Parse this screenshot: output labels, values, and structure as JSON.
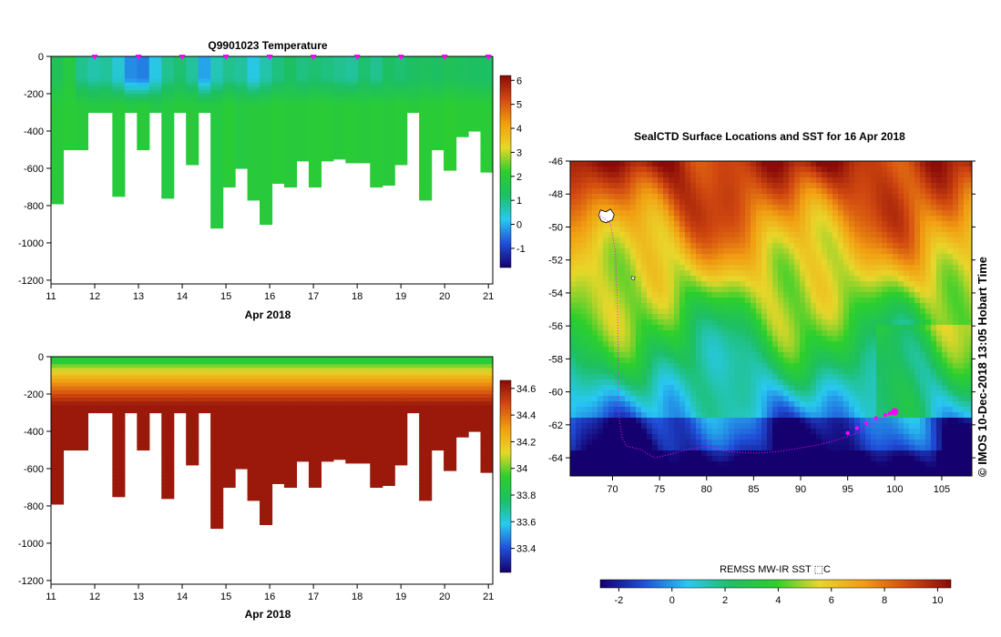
{
  "colors": {
    "ramp": [
      "#14006e",
      "#1f4fd8",
      "#29c8f2",
      "#1dbf63",
      "#2ccf2c",
      "#e9d62a",
      "#f29d12",
      "#d24a10",
      "#8a0b08"
    ]
  },
  "chart_data": [
    {
      "type": "heatmap",
      "title": "Q9901023  Temperature",
      "xlabel": "Apr 2018",
      "ylabel": "",
      "xlim": [
        11,
        21.1
      ],
      "ylim": [
        -1220,
        0
      ],
      "xticks": [
        11,
        12,
        13,
        14,
        15,
        16,
        17,
        18,
        19,
        20,
        21
      ],
      "yticks": [
        0,
        -200,
        -400,
        -600,
        -800,
        -1000,
        -1200
      ],
      "colorbar": {
        "min": -1.8,
        "max": 6.2,
        "ticks": [
          6,
          5,
          4,
          3,
          2,
          1,
          0,
          -1
        ]
      },
      "surface_markers_day": [
        12,
        13,
        14,
        15,
        16,
        17,
        18,
        19,
        20,
        21
      ],
      "profile_max_depths": [
        -790,
        -500,
        -500,
        -300,
        -300,
        -750,
        -300,
        -500,
        -300,
        -760,
        -300,
        -580,
        -300,
        -920,
        -700,
        -600,
        -770,
        -900,
        -680,
        -700,
        -560,
        -700,
        -560,
        -550,
        -570,
        -570,
        -700,
        -690,
        -580,
        -300,
        -770,
        -500,
        -610,
        -430,
        -400,
        -620
      ],
      "profile_surface_values": [
        1.4,
        1.8,
        0.9,
        0.7,
        0.8,
        0.4,
        -0.3,
        -0.4,
        0.3,
        0.9,
        1.1,
        0.8,
        -0.1,
        0.6,
        0.9,
        0.8,
        0.3,
        0.7,
        1.0,
        1.2,
        1.0,
        1.1,
        1.0,
        0.9,
        0.8,
        1.1,
        0.9,
        1.2,
        1.1,
        1.2,
        1.3,
        1.2,
        1.4,
        1.3,
        1.2,
        1.2
      ],
      "profile_deep_values": [
        1.9,
        2.0,
        1.9,
        1.8,
        1.8,
        1.9,
        1.8,
        1.9,
        1.7,
        1.8,
        1.9,
        1.9,
        1.8,
        1.8,
        2.0,
        1.8,
        1.9,
        1.9,
        2.0,
        1.9,
        1.9,
        2.0,
        2.0,
        1.9,
        2.0,
        1.9,
        2.0,
        1.9,
        2.0,
        1.9,
        2.0,
        2.0,
        2.1,
        2.0,
        2.0,
        2.0
      ]
    },
    {
      "type": "heatmap",
      "title": "",
      "xlabel": "Apr 2018",
      "ylabel": "",
      "xlim": [
        11,
        21.1
      ],
      "ylim": [
        -1220,
        0
      ],
      "xticks": [
        11,
        12,
        13,
        14,
        15,
        16,
        17,
        18,
        19,
        20,
        21
      ],
      "yticks": [
        0,
        -200,
        -400,
        -600,
        -800,
        -1000,
        -1200
      ],
      "colorbar": {
        "min": 33.22,
        "max": 34.66,
        "ticks": [
          34.6,
          34.4,
          34.2,
          34,
          33.8,
          33.6,
          33.4
        ]
      },
      "profile_max_depths": [
        -790,
        -500,
        -500,
        -300,
        -300,
        -750,
        -300,
        -500,
        -300,
        -760,
        -300,
        -580,
        -300,
        -920,
        -700,
        -600,
        -770,
        -900,
        -680,
        -700,
        -560,
        -700,
        -560,
        -550,
        -570,
        -570,
        -700,
        -690,
        -580,
        -300,
        -770,
        -500,
        -610,
        -430,
        -400,
        -620
      ],
      "surface_value": 33.9,
      "deep_value": 34.62
    },
    {
      "type": "heatmap",
      "title": "SealCTD Surface Locations and SST for 16 Apr 2018",
      "xlabel": "",
      "ylabel": "",
      "xlim": [
        65.5,
        108.2
      ],
      "ylim": [
        -65.1,
        -46
      ],
      "xticks": [
        70,
        75,
        80,
        85,
        90,
        95,
        100,
        105
      ],
      "yticks": [
        -46,
        -48,
        -50,
        -52,
        -54,
        -56,
        -58,
        -60,
        -62,
        -64
      ],
      "colorbar": {
        "label": "REMSS MW-IR SST ⬚C",
        "min": -2.7,
        "max": 10.5,
        "ticks": [
          -2,
          0,
          2,
          4,
          6,
          8,
          10
        ]
      },
      "track_lon": [
        68.5,
        69.8,
        70.3,
        70.5,
        70.6,
        70.6,
        70.7,
        71.0,
        71.5,
        73.0,
        74.5,
        76.0,
        78.0,
        80.0,
        82.0,
        84.0,
        86.0,
        88.0,
        90.0,
        92.0,
        94.0,
        96.0,
        98.0,
        99.0,
        100.0
      ],
      "track_lat": [
        -49.2,
        -49.8,
        -51.5,
        -54.0,
        -57.0,
        -60.0,
        -61.5,
        -62.8,
        -63.3,
        -63.5,
        -64.0,
        -63.8,
        -63.5,
        -63.3,
        -63.6,
        -63.7,
        -63.7,
        -63.6,
        -63.4,
        -63.2,
        -62.9,
        -62.5,
        -61.9,
        -61.5,
        -61.2
      ],
      "recent_track_lon": [
        95.0,
        96.0,
        97.0,
        98.0,
        99.0,
        99.5,
        100.0
      ],
      "recent_track_lat": [
        -62.5,
        -62.2,
        -61.9,
        -61.6,
        -61.4,
        -61.3,
        -61.2
      ],
      "island_lon": 69.5,
      "island_lat": -49.3
    }
  ],
  "timestamp": "©  IMOS 10-Dec-2018 13:05 Hobart Time"
}
